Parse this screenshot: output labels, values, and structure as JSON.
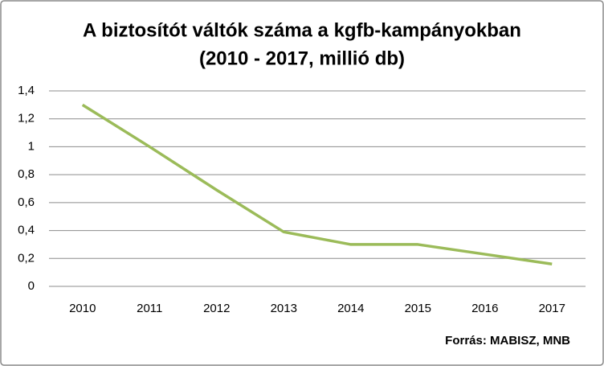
{
  "chart_data": {
    "type": "line",
    "title": "A biztosítót váltók száma a kgfb-kampányokban",
    "subtitle": "(2010 - 2017, millió db)",
    "source": "Forrás:  MABISZ, MNB",
    "categories": [
      "2010",
      "2011",
      "2012",
      "2013",
      "2014",
      "2015",
      "2016",
      "2017"
    ],
    "series": [
      {
        "color": "#9bbb59",
        "values": [
          1.3,
          1.0,
          0.69,
          0.39,
          0.3,
          0.3,
          0.23,
          0.16
        ]
      }
    ],
    "ylim": [
      0,
      1.4
    ],
    "yticks": [
      0,
      {
        "value": 0.2,
        "label": "0,2"
      },
      {
        "value": 0.4,
        "label": "0,4"
      },
      {
        "value": 0.6,
        "label": "0,6"
      },
      {
        "value": 0.8,
        "label": "0,8"
      },
      1,
      {
        "value": 1.2,
        "label": "1,2"
      },
      {
        "value": 1.4,
        "label": "1,4"
      }
    ],
    "grid": true
  }
}
